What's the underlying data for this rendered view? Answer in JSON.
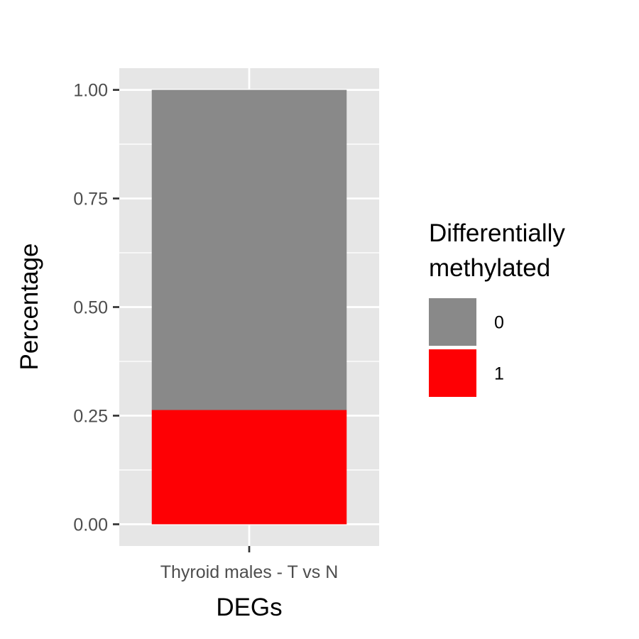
{
  "chart_data": {
    "type": "bar",
    "stacked": true,
    "title": "",
    "xlabel": "DEGs",
    "ylabel": "Percentage",
    "categories": [
      "Thyroid males - T vs N"
    ],
    "ylim": [
      -0.05,
      1.05
    ],
    "yticks": [
      0.0,
      0.25,
      0.5,
      0.75,
      1.0
    ],
    "ytick_labels": [
      "0.00",
      "0.25",
      "0.50",
      "0.75",
      "1.00"
    ],
    "grid": true,
    "legend": {
      "title_lines": [
        "Differentially",
        "methylated"
      ],
      "placement": "right"
    },
    "series": [
      {
        "name": "0",
        "values": [
          0.737
        ],
        "color": "#898989"
      },
      {
        "name": "1",
        "values": [
          0.263
        ],
        "color": "#fe0004"
      }
    ],
    "stack_order_bottom_to_top": [
      "1",
      "0"
    ]
  }
}
